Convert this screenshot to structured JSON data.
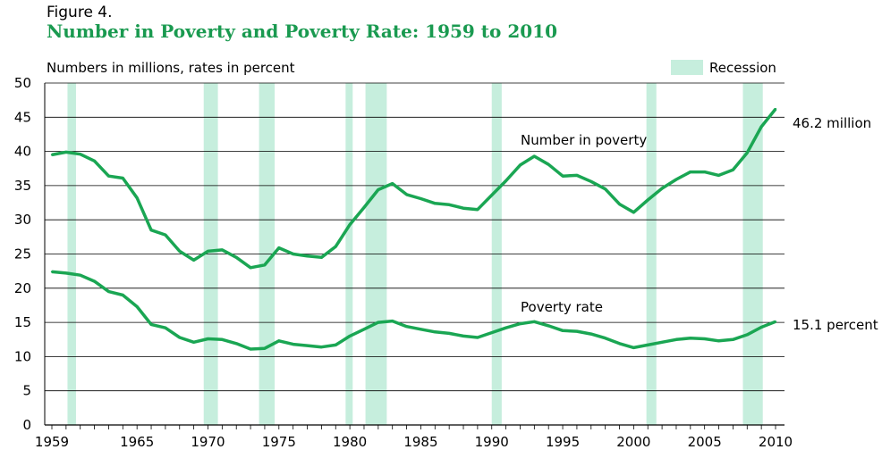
{
  "chart_data": {
    "type": "line",
    "figure_label": "Figure 4.",
    "title": "Number in Poverty and Poverty Rate: 1959 to 2010",
    "ylabel": "Numbers in millions, rates in percent",
    "ylim": [
      0,
      50
    ],
    "yticks": [
      "0",
      "5",
      "10",
      "15",
      "20",
      "25",
      "30",
      "35",
      "40",
      "45",
      "50"
    ],
    "xlim": [
      1959,
      2010
    ],
    "xticks": [
      "1959",
      "1965",
      "1970",
      "1975",
      "1980",
      "1985",
      "1990",
      "1995",
      "2000",
      "2005",
      "2010"
    ],
    "grid": "horizontal",
    "legend": {
      "label": "Recession",
      "position": "top-right",
      "color": "#c6eedd"
    },
    "line_color": "#1aa653",
    "recessions": [
      [
        1960.1,
        1960.7
      ],
      [
        1969.7,
        1970.7
      ],
      [
        1973.6,
        1974.7
      ],
      [
        1979.7,
        1980.2
      ],
      [
        1981.1,
        1982.6
      ],
      [
        1990.0,
        1990.7
      ],
      [
        2000.9,
        2001.6
      ],
      [
        2007.7,
        2009.1
      ]
    ],
    "x": [
      1959,
      1960,
      1961,
      1962,
      1963,
      1964,
      1965,
      1966,
      1967,
      1968,
      1969,
      1970,
      1971,
      1972,
      1973,
      1974,
      1975,
      1976,
      1977,
      1978,
      1979,
      1980,
      1981,
      1982,
      1983,
      1984,
      1985,
      1986,
      1987,
      1988,
      1989,
      1990,
      1991,
      1992,
      1993,
      1994,
      1995,
      1996,
      1997,
      1998,
      1999,
      2000,
      2001,
      2002,
      2003,
      2004,
      2005,
      2006,
      2007,
      2008,
      2009,
      2010
    ],
    "series": [
      {
        "name": "Number in poverty",
        "end_label": "46.2 million",
        "values": [
          39.5,
          39.9,
          39.6,
          38.6,
          36.4,
          36.1,
          33.2,
          28.5,
          27.8,
          25.4,
          24.1,
          25.4,
          25.6,
          24.5,
          23.0,
          23.4,
          25.9,
          25.0,
          24.7,
          24.5,
          26.1,
          29.3,
          31.8,
          34.4,
          35.3,
          33.7,
          33.1,
          32.4,
          32.2,
          31.7,
          31.5,
          33.6,
          35.7,
          38.0,
          39.3,
          38.1,
          36.4,
          36.5,
          35.6,
          34.5,
          32.3,
          31.1,
          32.9,
          34.6,
          35.9,
          37.0,
          37.0,
          36.5,
          37.3,
          39.8,
          43.6,
          46.2
        ]
      },
      {
        "name": "Poverty rate",
        "end_label": "15.1 percent",
        "values": [
          22.4,
          22.2,
          21.9,
          21.0,
          19.5,
          19.0,
          17.3,
          14.7,
          14.2,
          12.8,
          12.1,
          12.6,
          12.5,
          11.9,
          11.1,
          11.2,
          12.3,
          11.8,
          11.6,
          11.4,
          11.7,
          13.0,
          14.0,
          15.0,
          15.2,
          14.4,
          14.0,
          13.6,
          13.4,
          13.0,
          12.8,
          13.5,
          14.2,
          14.8,
          15.1,
          14.5,
          13.8,
          13.7,
          13.3,
          12.7,
          11.9,
          11.3,
          11.7,
          12.1,
          12.5,
          12.7,
          12.6,
          12.3,
          12.5,
          13.2,
          14.3,
          15.1
        ]
      }
    ]
  }
}
